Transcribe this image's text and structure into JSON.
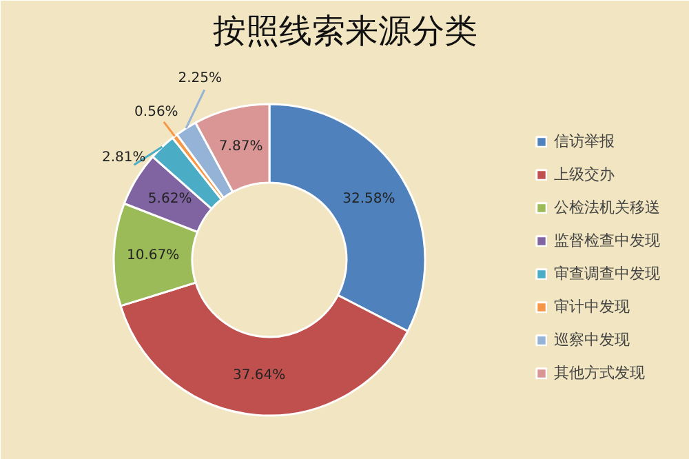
{
  "chart_data": {
    "type": "donut",
    "title": "按照线索来源分类",
    "categories": [
      "信访举报",
      "上级交办",
      "公检法机关移送",
      "监督检查中发现",
      "审查调查中发现",
      "审计中发现",
      "巡察中发现",
      "其他方式发现"
    ],
    "values": [
      32.58,
      37.64,
      10.67,
      5.62,
      2.81,
      0.56,
      2.25,
      7.87
    ],
    "colors": [
      "#4f81bd",
      "#c0504d",
      "#9bbb59",
      "#8064a2",
      "#4bacc6",
      "#f79646",
      "#95b3d7",
      "#d99694"
    ],
    "value_labels": [
      "32.58%",
      "37.64%",
      "10.67%",
      "5.62%",
      "2.81%",
      "0.56%",
      "2.25%",
      "7.87%"
    ],
    "legend": "right"
  }
}
